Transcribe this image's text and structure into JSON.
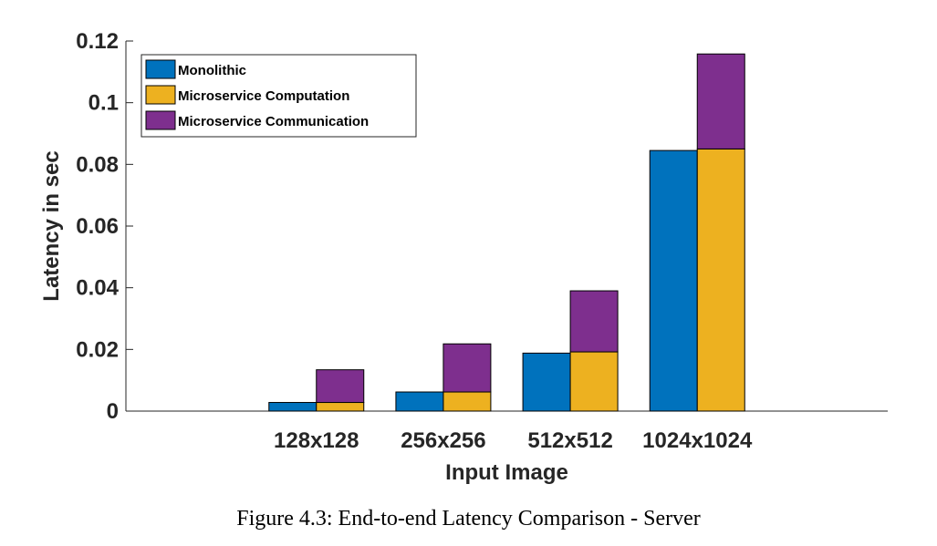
{
  "chart_data": {
    "type": "bar",
    "categories": [
      "128x128",
      "256x256",
      "512x512",
      "1024x1024"
    ],
    "series": [
      {
        "name": "Monolithic",
        "stack": "monolithic",
        "values": [
          0.0028,
          0.0062,
          0.0188,
          0.0845
        ]
      },
      {
        "name": "Microservice Computation",
        "stack": "microservice",
        "values": [
          0.0028,
          0.0062,
          0.0192,
          0.085
        ]
      },
      {
        "name": "Microservice Communication",
        "stack": "microservice",
        "values": [
          0.0106,
          0.0156,
          0.0198,
          0.0308
        ]
      }
    ],
    "colors": [
      "#0072BD",
      "#EDB120",
      "#7E2F8E"
    ],
    "xlabel": "Input Image",
    "ylabel": "Latency in sec",
    "ylim": [
      0,
      0.12
    ],
    "yticks": [
      "0",
      "0.02",
      "0.04",
      "0.06",
      "0.08",
      "0.1",
      "0.12"
    ],
    "x_slots": 6,
    "legend_position": "top-left",
    "grid": false
  },
  "caption": "Figure 4.3: End-to-end Latency Comparison - Server"
}
